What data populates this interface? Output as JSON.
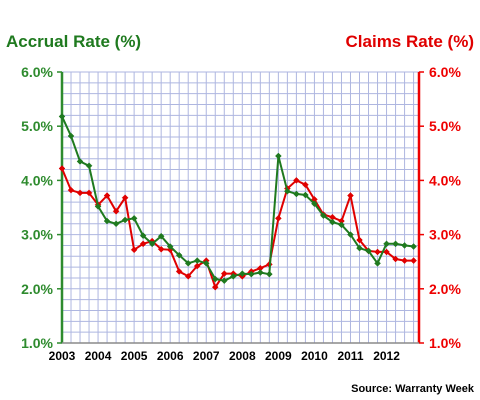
{
  "chart_data": {
    "type": "line",
    "left_title": "Accrual Rate (%)",
    "right_title": "Claims Rate (%)",
    "source": "Source: Warranty Week",
    "ylim": [
      1.0,
      6.0
    ],
    "y_ticks": [
      "1.0%",
      "2.0%",
      "3.0%",
      "4.0%",
      "5.0%",
      "6.0%"
    ],
    "y_tick_values": [
      1.0,
      2.0,
      3.0,
      4.0,
      5.0,
      6.0
    ],
    "x_range": [
      2003.0,
      2012.9
    ],
    "x_ticks": [
      "2003",
      "2004",
      "2005",
      "2006",
      "2007",
      "2008",
      "2009",
      "2010",
      "2011",
      "2012"
    ],
    "x_tick_values": [
      2003,
      2004,
      2005,
      2006,
      2007,
      2008,
      2009,
      2010,
      2011,
      2012
    ],
    "grid": true,
    "colors": {
      "accrual": "#1f7a1f",
      "claims": "#e00000",
      "left_axis": "#2e8b2e",
      "right_axis": "#ee0000",
      "grid": "#aeb6e0",
      "plot_bg": "#ffffff"
    },
    "series": [
      {
        "name": "Accrual Rate (%)",
        "axis": "left",
        "x": [
          2003.0,
          2003.25,
          2003.5,
          2003.75,
          2004.0,
          2004.25,
          2004.5,
          2004.75,
          2005.0,
          2005.25,
          2005.5,
          2005.75,
          2006.0,
          2006.25,
          2006.5,
          2006.75,
          2007.0,
          2007.25,
          2007.5,
          2007.75,
          2008.0,
          2008.25,
          2008.5,
          2008.75,
          2009.0,
          2009.25,
          2009.5,
          2009.75,
          2010.0,
          2010.25,
          2010.5,
          2010.75,
          2011.0,
          2011.25,
          2011.5,
          2011.75,
          2012.0,
          2012.25,
          2012.5,
          2012.75
        ],
        "values": [
          5.18,
          4.82,
          4.35,
          4.27,
          3.52,
          3.25,
          3.2,
          3.27,
          3.3,
          2.98,
          2.83,
          2.97,
          2.78,
          2.62,
          2.47,
          2.52,
          2.47,
          2.18,
          2.15,
          2.23,
          2.28,
          2.27,
          2.3,
          2.27,
          4.45,
          3.8,
          3.75,
          3.73,
          3.57,
          3.35,
          3.23,
          3.18,
          3.0,
          2.75,
          2.7,
          2.47,
          2.83,
          2.83,
          2.8,
          2.78
        ]
      },
      {
        "name": "Claims Rate (%)",
        "axis": "right",
        "x": [
          2003.0,
          2003.25,
          2003.5,
          2003.75,
          2004.0,
          2004.25,
          2004.5,
          2004.75,
          2005.0,
          2005.25,
          2005.5,
          2005.75,
          2006.0,
          2006.25,
          2006.5,
          2006.75,
          2007.0,
          2007.25,
          2007.5,
          2007.75,
          2008.0,
          2008.25,
          2008.5,
          2008.75,
          2009.0,
          2009.25,
          2009.5,
          2009.75,
          2010.0,
          2010.25,
          2010.5,
          2010.75,
          2011.0,
          2011.25,
          2011.5,
          2011.75,
          2012.0,
          2012.25,
          2012.5,
          2012.75
        ],
        "values": [
          4.22,
          3.82,
          3.77,
          3.77,
          3.55,
          3.72,
          3.43,
          3.68,
          2.72,
          2.83,
          2.88,
          2.73,
          2.72,
          2.32,
          2.23,
          2.42,
          2.52,
          2.03,
          2.28,
          2.28,
          2.23,
          2.32,
          2.38,
          2.45,
          3.3,
          3.85,
          4.0,
          3.92,
          3.65,
          3.37,
          3.32,
          3.25,
          3.72,
          2.9,
          2.7,
          2.68,
          2.68,
          2.55,
          2.52,
          2.52
        ]
      }
    ]
  }
}
